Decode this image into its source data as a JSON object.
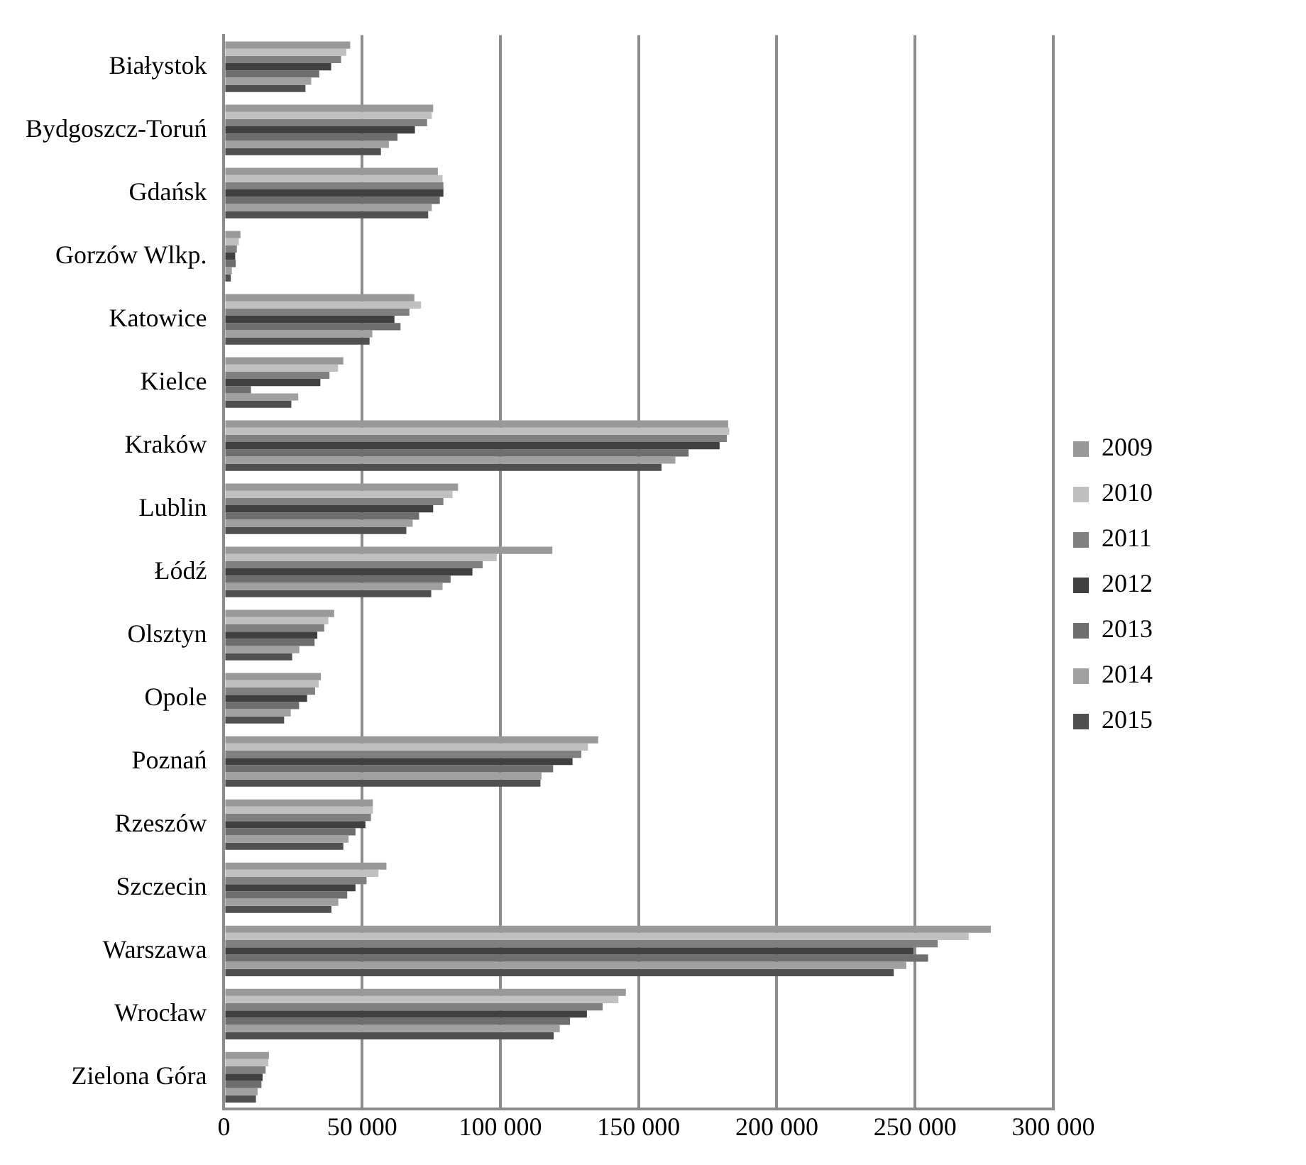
{
  "chart_data": {
    "type": "bar",
    "orientation": "horizontal",
    "categories": [
      "Białystok",
      "Bydgoszcz-Toruń",
      "Gdańsk",
      "Gorzów Wlkp.",
      "Katowice",
      "Kielce",
      "Kraków",
      "Lublin",
      "Łódź",
      "Olsztyn",
      "Opole",
      "Poznań",
      "Rzeszów",
      "Szczecin",
      "Warszawa",
      "Wrocław",
      "Zielona Góra"
    ],
    "series": [
      {
        "name": "2009",
        "color": "#999999",
        "values": [
          45700,
          75700,
          77400,
          6000,
          68900,
          43200,
          182400,
          84700,
          118800,
          39900,
          35100,
          135400,
          53900,
          58800,
          277400,
          145400,
          16300
        ]
      },
      {
        "name": "2010",
        "color": "#c0c0c0",
        "values": [
          44300,
          75200,
          79100,
          5400,
          71300,
          41300,
          182800,
          82700,
          98700,
          37800,
          34300,
          131700,
          53900,
          55900,
          269400,
          142700,
          16100
        ]
      },
      {
        "name": "2011",
        "color": "#808080",
        "values": [
          42400,
          73500,
          79400,
          4700,
          67100,
          38200,
          181900,
          79400,
          93600,
          36300,
          33000,
          129300,
          53200,
          51600,
          258200,
          137000,
          15100
        ]
      },
      {
        "name": "2012",
        "color": "#404040",
        "values": [
          38800,
          69100,
          79400,
          4100,
          61700,
          34900,
          179300,
          75700,
          89900,
          33800,
          30100,
          126100,
          51200,
          47600,
          249400,
          131300,
          14000
        ]
      },
      {
        "name": "2013",
        "color": "#6e6e6e",
        "values": [
          34500,
          62800,
          78100,
          4300,
          63900,
          9800,
          168100,
          70600,
          82000,
          32800,
          27200,
          119100,
          47600,
          44600,
          254700,
          125200,
          13600
        ]
      },
      {
        "name": "2014",
        "color": "#a0a0a0",
        "values": [
          31600,
          59700,
          75200,
          2900,
          53700,
          26900,
          163300,
          68300,
          79100,
          27300,
          24200,
          114900,
          45100,
          41400,
          246800,
          121500,
          12200
        ]
      },
      {
        "name": "2015",
        "color": "#505050",
        "values": [
          29500,
          56800,
          73900,
          2500,
          52700,
          24400,
          158300,
          66000,
          75000,
          24700,
          21800,
          114500,
          43200,
          38900,
          242300,
          119300,
          11600
        ]
      }
    ],
    "xlim": [
      0,
      300000
    ],
    "xticks": [
      0,
      {
        "value": 50000,
        "label": "50 000"
      },
      {
        "value": 100000,
        "label": "100 000"
      },
      {
        "value": 150000,
        "label": "150 000"
      },
      {
        "value": 200000,
        "label": "200 000"
      },
      {
        "value": 250000,
        "label": "250 000"
      },
      {
        "value": 300000,
        "label": "300 000"
      }
    ],
    "grid": "x",
    "legend": "right"
  }
}
